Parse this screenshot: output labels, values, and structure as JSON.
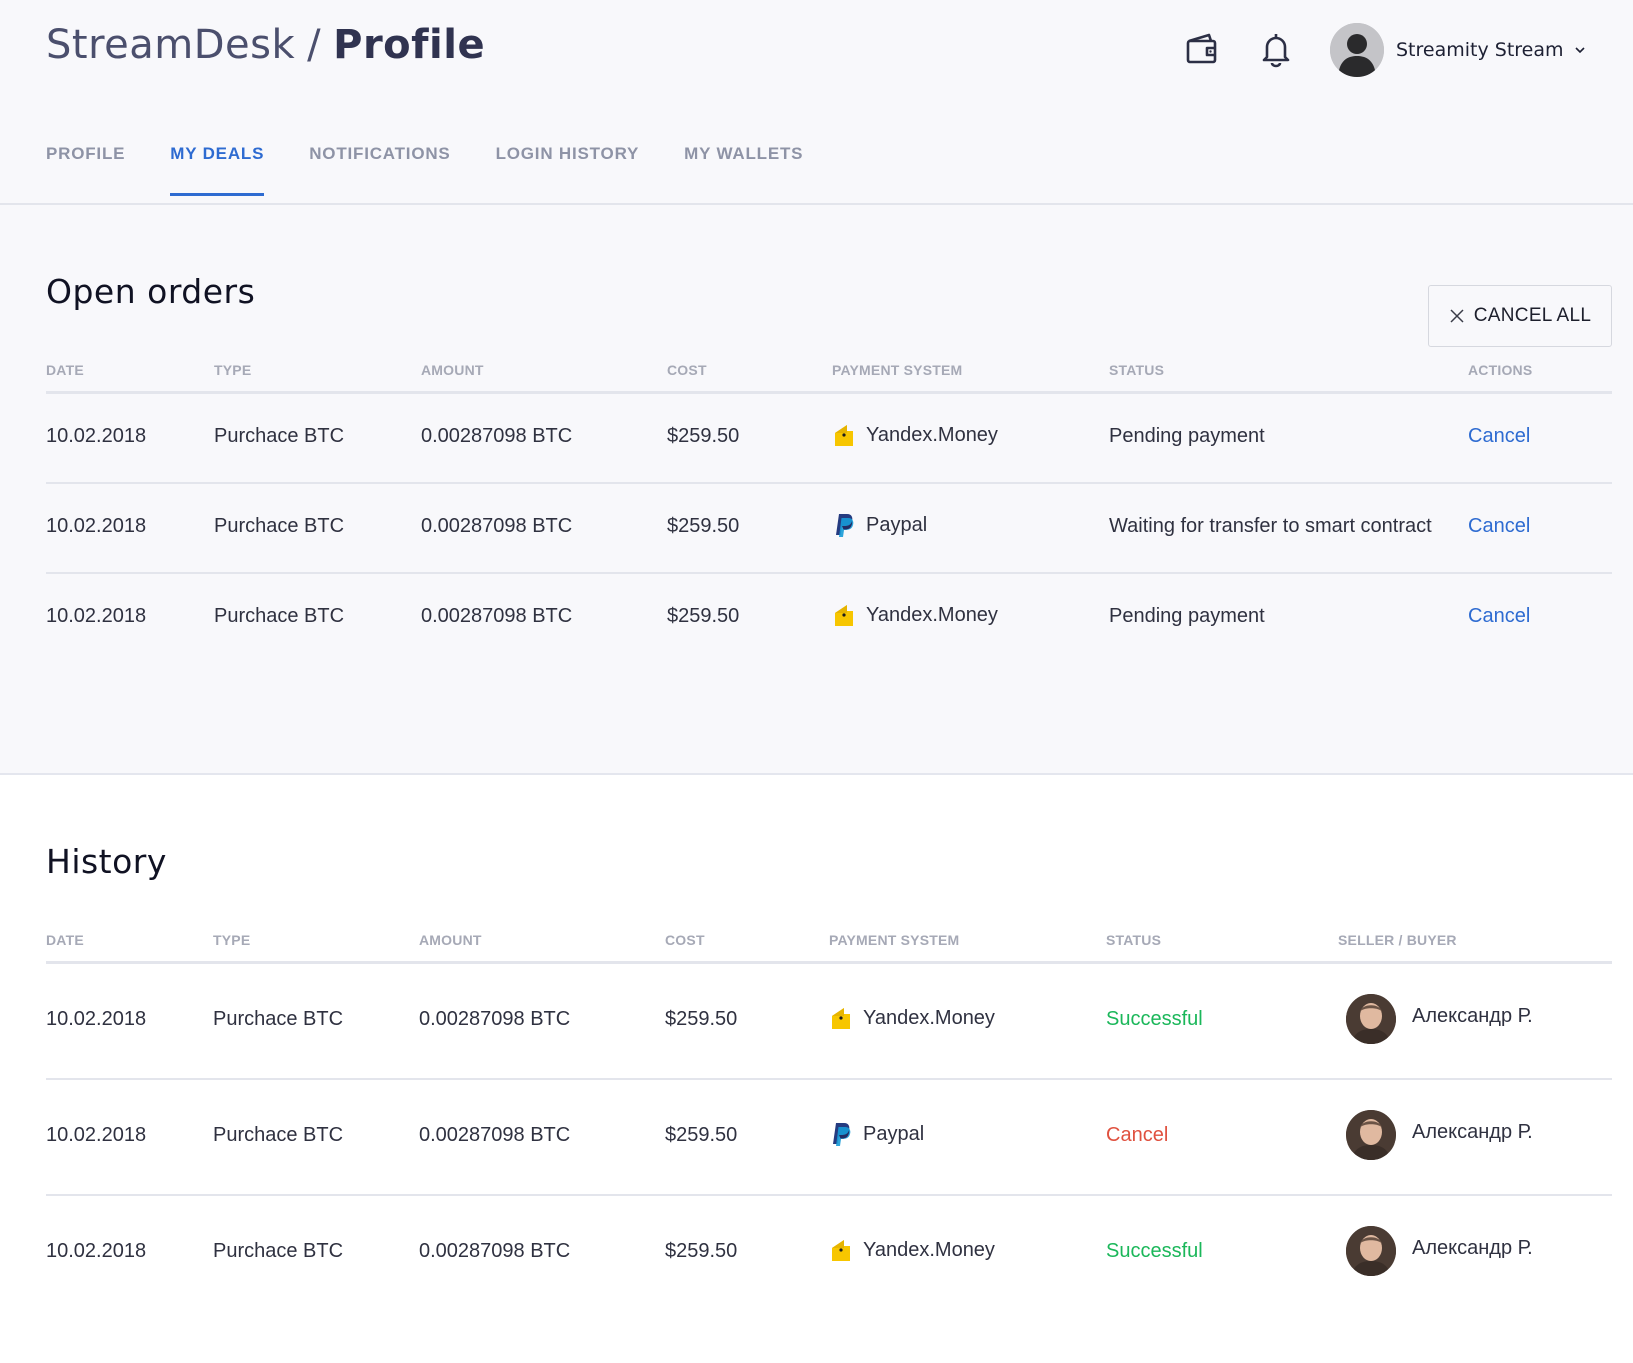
{
  "header": {
    "brand": "StreamDesk",
    "separator": "/",
    "page": "Profile",
    "wallet_icon": "wallet-icon",
    "bell_icon": "bell-icon",
    "user_name": "Streamity Stream"
  },
  "tabs": [
    {
      "label": "PROFILE",
      "active": false
    },
    {
      "label": "MY DEALS",
      "active": true
    },
    {
      "label": "NOTIFICATIONS",
      "active": false
    },
    {
      "label": "LOGIN HISTORY",
      "active": false
    },
    {
      "label": "MY WALLETS",
      "active": false
    }
  ],
  "open_orders": {
    "title": "Open orders",
    "cancel_all": "CANCEL ALL",
    "columns": [
      "DATE",
      "TYPE",
      "AMOUNT",
      "COST",
      "PAYMENT SYSTEM",
      "STATUS",
      "ACTIONS"
    ],
    "rows": [
      {
        "date": "10.02.2018",
        "type": "Purchace BTC",
        "amount": "0.00287098 BTC",
        "cost": "$259.50",
        "payment": "Yandex.Money",
        "payment_icon": "yandex-money-icon",
        "status": "Pending payment",
        "action": "Cancel"
      },
      {
        "date": "10.02.2018",
        "type": "Purchace BTC",
        "amount": "0.00287098 BTC",
        "cost": "$259.50",
        "payment": "Paypal",
        "payment_icon": "paypal-icon",
        "status": "Waiting for transfer to smart contract",
        "action": "Cancel"
      },
      {
        "date": "10.02.2018",
        "type": "Purchace BTC",
        "amount": "0.00287098 BTC",
        "cost": "$259.50",
        "payment": "Yandex.Money",
        "payment_icon": "yandex-money-icon",
        "status": "Pending payment",
        "action": "Cancel"
      }
    ]
  },
  "history": {
    "title": "History",
    "columns": [
      "DATE",
      "TYPE",
      "AMOUNT",
      "COST",
      "PAYMENT SYSTEM",
      "STATUS",
      "SELLER / BUYER"
    ],
    "rows": [
      {
        "date": "10.02.2018",
        "type": "Purchace BTC",
        "amount": "0.00287098 BTC",
        "cost": "$259.50",
        "payment": "Yandex.Money",
        "payment_icon": "yandex-money-icon",
        "status": "Successful",
        "status_color": "#1bb75a",
        "person": "Александр Р."
      },
      {
        "date": "10.02.2018",
        "type": "Purchace BTC",
        "amount": "0.00287098 BTC",
        "cost": "$259.50",
        "payment": "Paypal",
        "payment_icon": "paypal-icon",
        "status": "Cancel",
        "status_color": "#e0513f",
        "person": "Александр Р."
      },
      {
        "date": "10.02.2018",
        "type": "Purchace BTC",
        "amount": "0.00287098 BTC",
        "cost": "$259.50",
        "payment": "Yandex.Money",
        "payment_icon": "yandex-money-icon",
        "status": "Successful",
        "status_color": "#1bb75a",
        "person": "Александр Р."
      }
    ]
  },
  "colors": {
    "accent": "#2e6bd1",
    "success": "#1bb75a",
    "danger": "#e0513f"
  }
}
